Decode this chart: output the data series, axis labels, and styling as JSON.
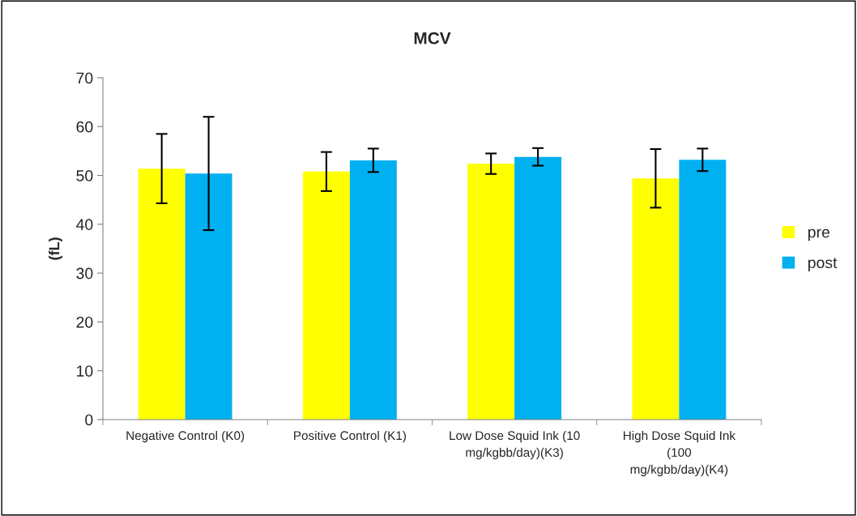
{
  "chart_data": {
    "type": "bar",
    "title": "MCV",
    "ylabel": "(fL)",
    "categories": [
      "Negative Control (K0)",
      "Positive Control (K1)",
      "Low Dose Squid Ink (10\nmg/kgbb/day)(K3)",
      "High Dose Squid Ink\n(100\nmg/kgbb/day)(K4)"
    ],
    "series": [
      {
        "name": "pre",
        "color": "#ffff00",
        "values": [
          51.4,
          50.8,
          52.4,
          49.4
        ],
        "errors": [
          7.1,
          4.0,
          2.1,
          6.0
        ]
      },
      {
        "name": "post",
        "color": "#00b0f0",
        "values": [
          50.4,
          53.1,
          53.8,
          53.2
        ],
        "errors": [
          11.6,
          2.4,
          1.8,
          2.3
        ]
      }
    ],
    "ylim": [
      0,
      70
    ],
    "yticks": [
      0,
      10,
      20,
      30,
      40,
      50,
      60,
      70
    ],
    "grid": false,
    "legend": "right"
  }
}
